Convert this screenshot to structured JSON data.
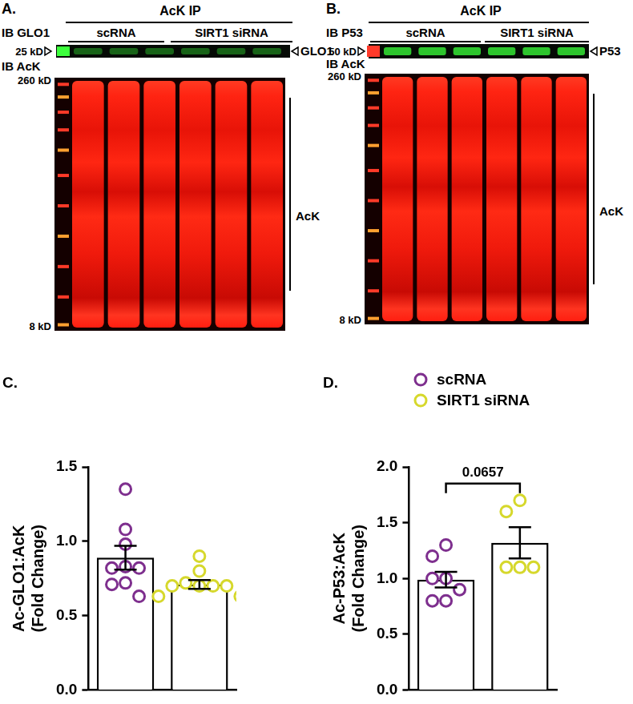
{
  "blots": [
    {
      "panel": "A.",
      "header": "AcK IP",
      "groups": [
        "scRNA",
        "SIRT1 siRNA"
      ],
      "top_row": {
        "label": "IB GLO1",
        "size": "25 kD",
        "band": "GLO1"
      },
      "bottom_row": {
        "label": "IB AcK",
        "sizes": [
          "260 kD",
          "8 kD"
        ],
        "band": "AcK"
      }
    },
    {
      "panel": "B.",
      "header": "AcK IP",
      "groups": [
        "scRNA",
        "SIRT1 siRNA"
      ],
      "top_row": {
        "label": "IB P53",
        "size": "50 kD",
        "band": "P53"
      },
      "bottom_row": {
        "label": "IB AcK",
        "sizes": [
          "260 kD",
          "8 kD"
        ],
        "band": "AcK"
      }
    }
  ],
  "chart_data": [
    {
      "type": "bar",
      "panel": "C.",
      "y_label": "Ac-GLO1:AcK\n(Fold Change)",
      "categories": [
        null,
        null
      ],
      "series": [
        {
          "color": "#7e2f8e",
          "marker": "circle",
          "values": [
            0.89,
            null
          ],
          "errors": [
            0.08,
            null
          ],
          "points": [
            1.35,
            1.08,
            0.98,
            0.83,
            0.82,
            0.82,
            0.72,
            0.71,
            0.63
          ]
        },
        {
          "color": "#d6d82c",
          "marker": "circle",
          "values": [
            null,
            0.71
          ],
          "errors": [
            null,
            0.03
          ],
          "points": [
            0.9,
            0.8,
            0.72,
            0.7,
            0.7,
            0.7,
            0.7,
            0.63,
            0.63
          ]
        }
      ],
      "ylim": [
        0,
        1.5
      ],
      "yticks": [
        {
          "value": 0,
          "label": "0.0"
        },
        0.5,
        {
          "value": 1,
          "label": "1.0"
        },
        1.5
      ],
      "grid": false,
      "tick_labels": "y"
    },
    {
      "type": "bar",
      "panel": "D.",
      "y_label": "Ac-P53:AcK\n(Fold Change)",
      "categories": [
        null,
        null
      ],
      "series": [
        {
          "name": "scRNA",
          "color": "#7e2f8e",
          "marker": "circle",
          "values": [
            0.99,
            null
          ],
          "errors": [
            0.07,
            null
          ],
          "points": [
            1.3,
            1.2,
            1.0,
            1.0,
            0.9,
            0.8,
            0.8
          ]
        },
        {
          "name": "SIRT1 siRNA",
          "color": "#d6d82c",
          "marker": "circle",
          "values": [
            null,
            1.32
          ],
          "errors": [
            null,
            0.14
          ],
          "points": [
            1.7,
            1.6,
            1.1,
            1.1,
            1.1
          ]
        }
      ],
      "ylim": [
        0,
        2
      ],
      "yticks": [
        {
          "value": 0,
          "label": "0.0"
        },
        0.5,
        {
          "value": 1,
          "label": "1.0"
        },
        1.5,
        {
          "value": 2,
          "label": "2.0"
        }
      ],
      "grid": false,
      "tick_labels": "y",
      "legend": "top",
      "annotation": "0.0657"
    }
  ]
}
